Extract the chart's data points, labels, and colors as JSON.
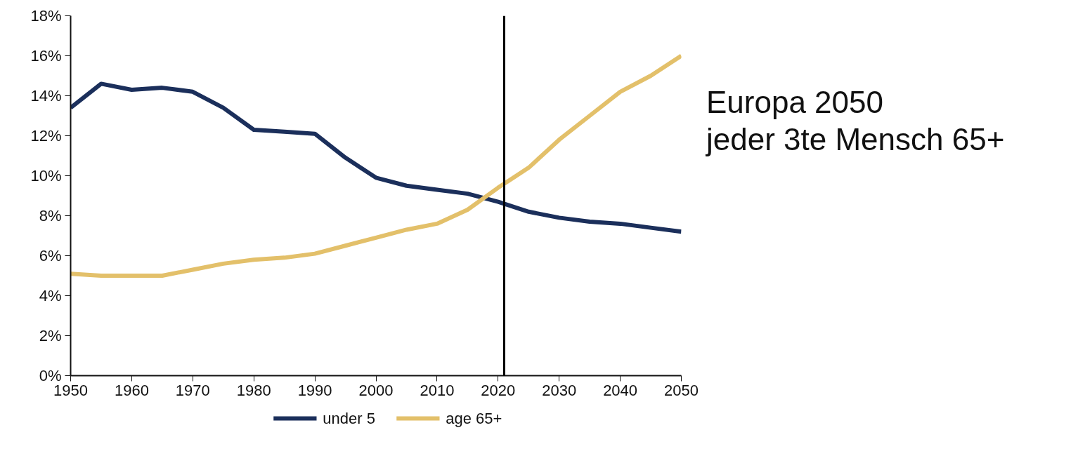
{
  "chart_data": {
    "type": "line",
    "x": [
      1950,
      1955,
      1960,
      1965,
      1970,
      1975,
      1980,
      1985,
      1990,
      1995,
      2000,
      2005,
      2010,
      2015,
      2020,
      2025,
      2030,
      2035,
      2040,
      2045,
      2050
    ],
    "series": [
      {
        "name": "under 5",
        "color": "#1b2f5b",
        "values": [
          13.4,
          14.6,
          14.3,
          14.4,
          14.2,
          13.4,
          12.3,
          12.2,
          12.1,
          10.9,
          9.9,
          9.5,
          9.3,
          9.1,
          8.7,
          8.2,
          7.9,
          7.7,
          7.6,
          7.4,
          7.2
        ]
      },
      {
        "name": "age 65+",
        "color": "#e3c06a",
        "values": [
          5.1,
          5.0,
          5.0,
          5.0,
          5.3,
          5.6,
          5.8,
          5.9,
          6.1,
          6.5,
          6.9,
          7.3,
          7.6,
          8.3,
          9.4,
          10.4,
          11.8,
          13.0,
          14.2,
          15.0,
          16.0
        ]
      }
    ],
    "xlim": [
      1950,
      2050
    ],
    "xticks": [
      1950,
      1960,
      1970,
      1980,
      1990,
      2000,
      2010,
      2020,
      2030,
      2040,
      2050
    ],
    "ylim": [
      0,
      18
    ],
    "yticks": [
      {
        "value": 0,
        "label": "0%"
      },
      {
        "value": 2,
        "label": "2%"
      },
      {
        "value": 4,
        "label": "4%"
      },
      {
        "value": 6,
        "label": "6%"
      },
      {
        "value": 8,
        "label": "8%"
      },
      {
        "value": 10,
        "label": "10%"
      },
      {
        "value": 12,
        "label": "12%"
      },
      {
        "value": 14,
        "label": "14%"
      },
      {
        "value": 16,
        "label": "16%"
      },
      {
        "value": 18,
        "label": "18%"
      }
    ],
    "ref_lines": [
      {
        "axis": "x",
        "value": 2021,
        "color": "#000000"
      }
    ],
    "annotations": [
      "Europa 2050\njeder 3te Mensch 65+"
    ],
    "legend": "bottom",
    "grid": false,
    "marker": "none",
    "line_style": "solid"
  }
}
